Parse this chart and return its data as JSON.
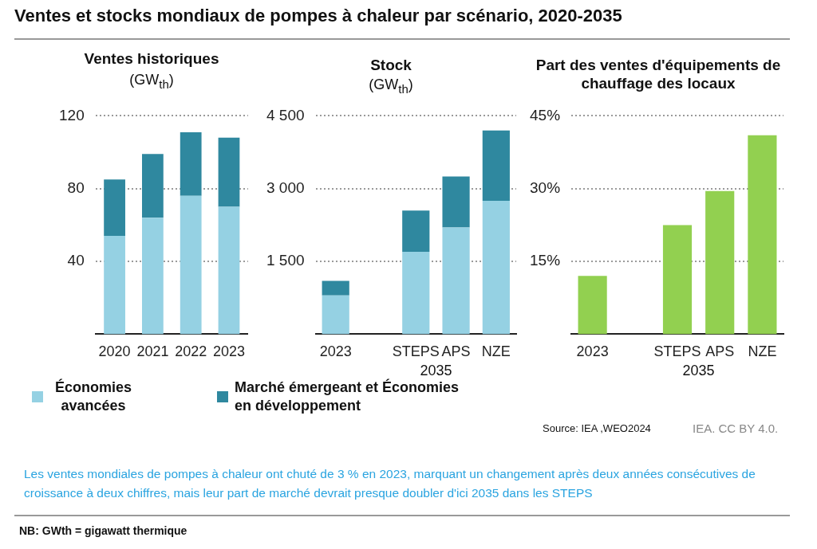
{
  "chart_data": [
    {
      "type": "bar",
      "title": "Ventes et stocks mondiaux de pompes à chaleur par scénario, 2020-2035",
      "subtitle": "Ventes historiques",
      "ylabel": "(GW$_{th}$)",
      "categories": [
        "2020",
        "2021",
        "2022",
        "2023"
      ],
      "stacked": true,
      "series": [
        {
          "name": "Économies avancées",
          "color": "#95d1e3",
          "values": [
            54,
            64,
            76,
            70
          ]
        },
        {
          "name": "Marché émergeant et Économies en développement",
          "color": "#2f889f",
          "values": [
            31,
            35,
            35,
            38
          ]
        }
      ],
      "ylim": [
        0,
        120
      ],
      "yticks": [
        40,
        80,
        120
      ],
      "grid": "y",
      "legend": "bottom",
      "annotations": [
        "Source: IEA ,WEO2024",
        "IEA. CC BY 4.0.",
        "Les ventes mondiales de pompes à chaleur ont chuté de 3 % en 2023, marquant un changement après deux années consécutives de croissance à deux chiffres, mais leur part de marché devrait presque doubler d'ici 2035 dans les STEPS",
        "NB: GWth = gigawatt thermique"
      ]
    },
    {
      "type": "bar",
      "title": "Stock",
      "ylabel": "(GW$_{th}$)",
      "categories": [
        "2023",
        null,
        "STEPS",
        "APS",
        "NZE"
      ],
      "stacked": true,
      "series": [
        {
          "color": "#95d1e3",
          "values": [
            800,
            null,
            1700,
            2200,
            2750
          ]
        },
        {
          "color": "#2f889f",
          "values": [
            300,
            null,
            850,
            1050,
            1450
          ]
        }
      ],
      "ylim": [
        0,
        4500
      ],
      "yticks": [
        {
          "value": 1500,
          "label": "1 500"
        },
        {
          "value": 3000,
          "label": "3 000"
        },
        {
          "value": 4500,
          "label": "4 500"
        }
      ],
      "grid": "y",
      "annotations": [
        "2035"
      ]
    },
    {
      "type": "bar",
      "title": "Part des ventes d'équipements de chauffage des locaux",
      "categories": [
        "2023",
        null,
        "STEPS",
        "APS",
        "NZE"
      ],
      "values": [
        12,
        null,
        22.5,
        29.5,
        41
      ],
      "color": "#92d050",
      "ylim": [
        0,
        45
      ],
      "yticks": [
        {
          "value": 15,
          "label": "15%"
        },
        {
          "value": 30,
          "label": "30%"
        },
        {
          "value": 45,
          "label": "45%"
        }
      ],
      "grid": "y",
      "annotations": [
        "2035"
      ]
    }
  ]
}
